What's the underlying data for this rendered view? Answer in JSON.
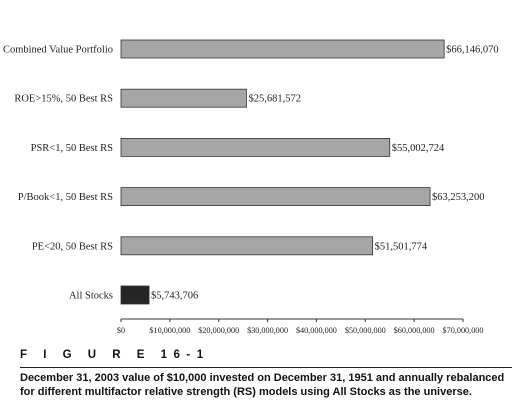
{
  "figure_label": "F I G U R E   16-1",
  "caption": "December 31, 2003 value of $10,000 invested on December 31, 1951 and annually rebalanced for different multifactor relative strength (RS) models using All Stocks as the universe.",
  "colors": {
    "gray_bar": "#a6a6a6",
    "dark_bar": "#262626",
    "bar_stroke": "#333333"
  },
  "chart_data": {
    "type": "bar",
    "orientation": "horizontal",
    "title": "",
    "xlabel": "",
    "ylabel": "",
    "xlim": [
      0,
      70000000
    ],
    "grid": false,
    "legend": "none",
    "categories": [
      "Combined Value Portfolio",
      "ROE>15%, 50 Best RS",
      "PSR<1, 50 Best RS",
      "P/Book<1, 50 Best RS",
      "PE<20, 50 Best RS",
      "All Stocks"
    ],
    "values": [
      66146070,
      25681572,
      55002724,
      63253200,
      51501774,
      5743706
    ],
    "value_labels": [
      "$66,146,070",
      "$25,681,572",
      "$55,002,724",
      "$63,253,200",
      "$51,501,774",
      "$5,743,706"
    ],
    "bar_colors": [
      "gray",
      "gray",
      "gray",
      "gray",
      "gray",
      "dark"
    ],
    "x_ticks": [
      0,
      10000000,
      20000000,
      30000000,
      40000000,
      50000000,
      60000000,
      70000000
    ],
    "x_tick_labels": [
      "$0",
      "$10,000,000",
      "$20,000,000",
      "$30,000,000",
      "$40,000,000",
      "$50,000,000",
      "$60,000,000",
      "$70,000,000"
    ]
  }
}
